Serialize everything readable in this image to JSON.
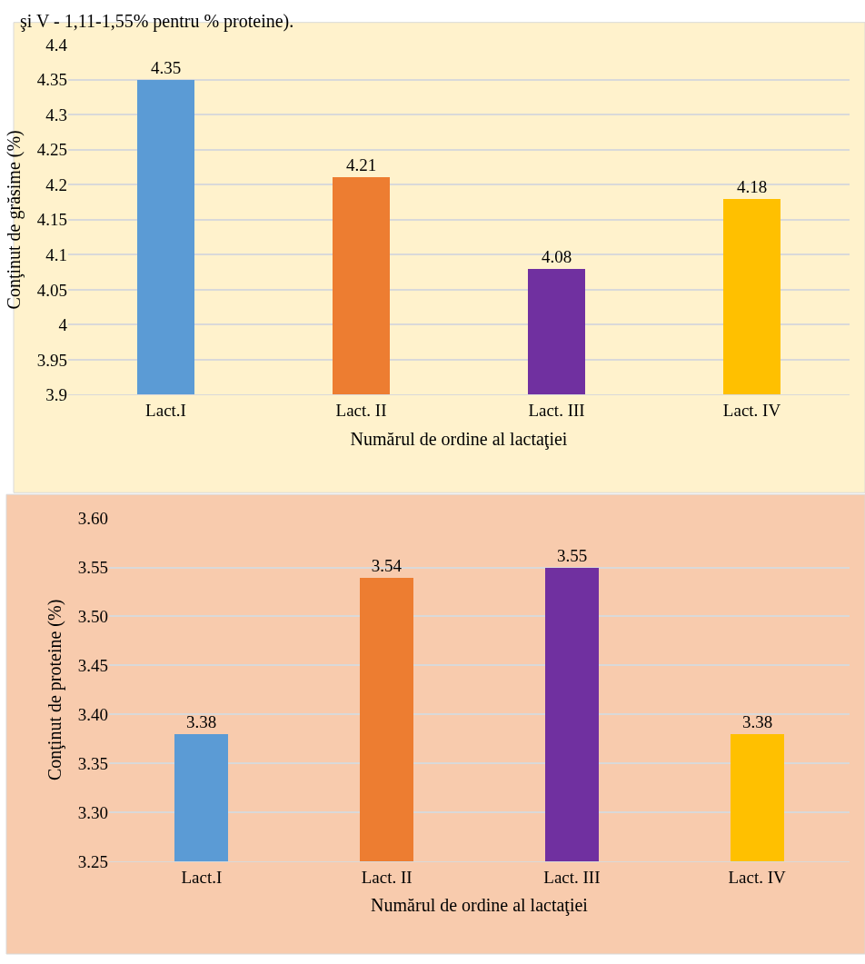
{
  "chart_data": [
    {
      "type": "bar",
      "annotations": [
        "şi V - 1,11-1,55% pentru % proteine)."
      ],
      "xlabel": "Numărul de ordine al lactaţiei",
      "ylabel": "Conţinut de grăsime (%)",
      "categories": [
        "Lact.I",
        "Lact. II",
        "Lact. III",
        "Lact. IV"
      ],
      "values": [
        4.35,
        4.21,
        4.08,
        4.18
      ],
      "colors": [
        "#5b9bd5",
        "#ed7d31",
        "#7030a0",
        "#ffc000"
      ],
      "ylim": [
        3.9,
        4.4
      ],
      "yticks": [
        3.9,
        3.95,
        4,
        4.05,
        4.1,
        4.15,
        4.2,
        4.25,
        4.3,
        4.35,
        4.4
      ],
      "grid": "y",
      "data_labels": true
    },
    {
      "type": "bar",
      "xlabel": "Numărul de ordine al lactaţiei",
      "ylabel": "Conţinut de proteine (%)",
      "categories": [
        "Lact.I",
        "Lact. II",
        "Lact. III",
        "Lact. IV"
      ],
      "values": [
        3.38,
        3.54,
        3.55,
        3.38
      ],
      "colors": [
        "#5b9bd5",
        "#ed7d31",
        "#7030a0",
        "#ffc000"
      ],
      "ylim": [
        3.25,
        3.6
      ],
      "yticks": [
        {
          "value": 3.25,
          "label": "3.25"
        },
        {
          "value": 3.3,
          "label": "3.30"
        },
        {
          "value": 3.35,
          "label": "3.35"
        },
        {
          "value": 3.4,
          "label": "3.40"
        },
        {
          "value": 3.45,
          "label": "3.45"
        },
        {
          "value": 3.5,
          "label": "3.50"
        },
        {
          "value": 3.55,
          "label": "3.55"
        },
        {
          "value": 3.6,
          "label": "3.60"
        }
      ],
      "grid": "y",
      "data_labels": true
    }
  ]
}
